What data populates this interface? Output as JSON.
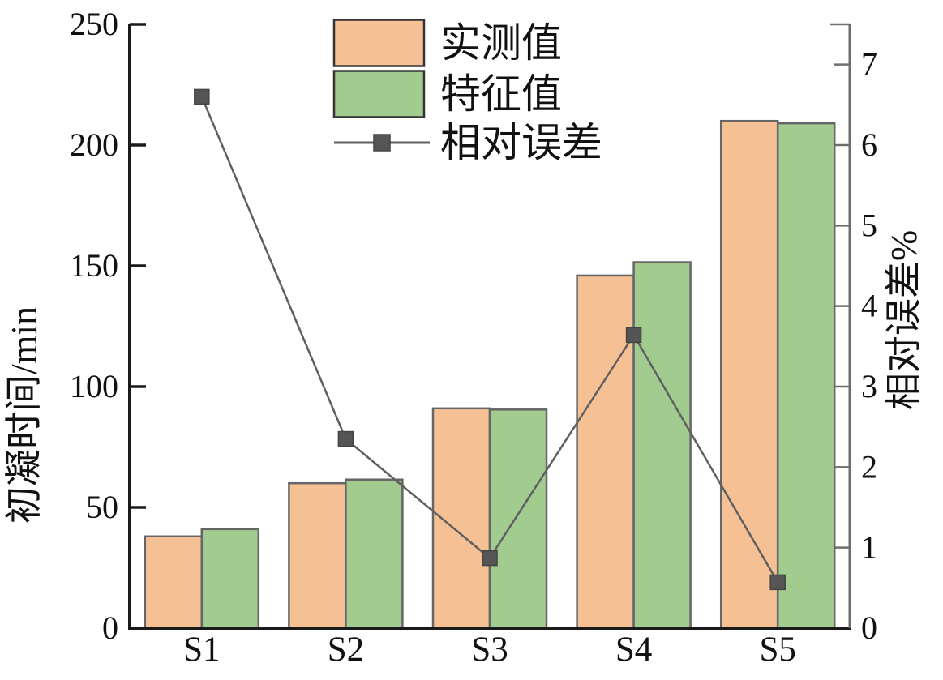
{
  "chart_data": {
    "type": "bar",
    "categories": [
      "S1",
      "S2",
      "S3",
      "S4",
      "S5"
    ],
    "series": [
      {
        "name": "实测值",
        "kind": "bar",
        "axis": "left",
        "values": [
          38,
          60,
          91,
          146,
          210
        ],
        "color": "#f6c095",
        "edge": "#666666"
      },
      {
        "name": "特征值",
        "kind": "bar",
        "axis": "left",
        "values": [
          41,
          61.5,
          90.5,
          151.5,
          209
        ],
        "color": "#a2cb90",
        "edge": "#666666"
      },
      {
        "name": "相对误差",
        "kind": "line",
        "axis": "right",
        "values": [
          6.6,
          2.35,
          0.87,
          3.64,
          0.57
        ],
        "color": "#5f5f5f",
        "marker": "square",
        "marker_color": "#555555"
      }
    ],
    "left_axis": {
      "label": "初凝时间/min",
      "ticks": [
        0,
        50,
        100,
        150,
        200,
        250
      ],
      "range": [
        0,
        250
      ]
    },
    "right_axis": {
      "label": "相对误差%",
      "ticks": [
        0,
        1,
        2,
        3,
        4,
        5,
        6,
        7
      ],
      "range": [
        0,
        7.5
      ]
    },
    "legend": {
      "entries": [
        "实测值",
        "特征值",
        "相对误差"
      ],
      "position": "upper-left-inside"
    },
    "title": "",
    "grid": "off",
    "colors": {
      "measured_fill": "#f6c095",
      "characteristic_fill": "#a2cb90",
      "bar_edge": "#666666",
      "error_line": "#5f5f5f",
      "left_axis_color": "#1a1a1a",
      "right_axis_color": "#6e6e6e",
      "text_color": "#111111"
    }
  }
}
